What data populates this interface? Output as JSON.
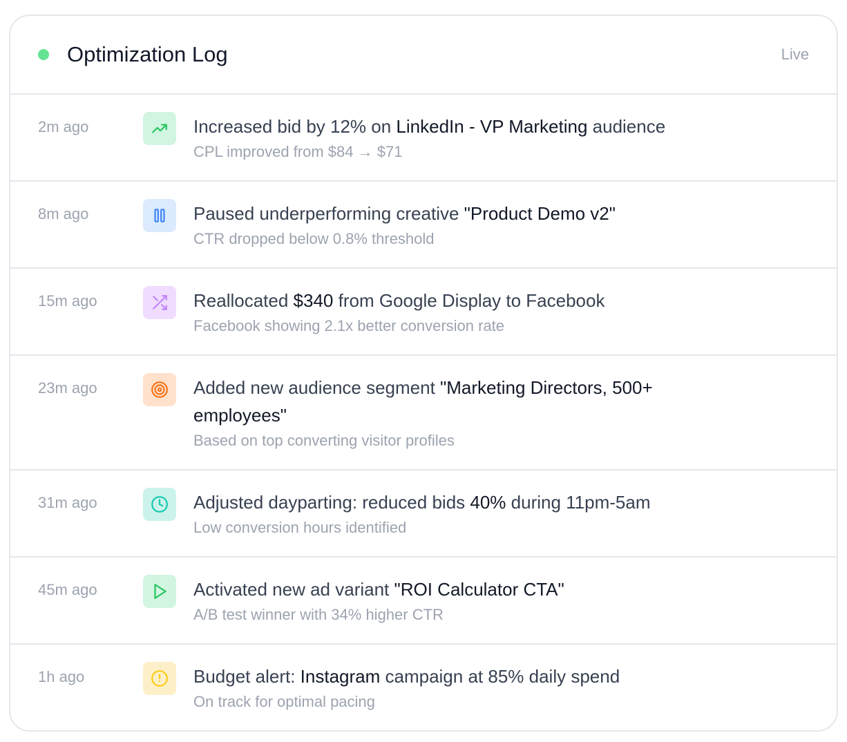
{
  "header": {
    "title": "Optimization Log",
    "status": "Live",
    "status_dot_color": "#4ade80"
  },
  "entries": [
    {
      "time": "2m ago",
      "icon": "trending-up-icon",
      "bg": "#d1f5e0",
      "fg": "#22c55e",
      "main_before": "Increased bid by 12% on ",
      "main_highlight": "LinkedIn - VP Marketing",
      "main_after": " audience",
      "detail": "CPL improved from $84 → $71"
    },
    {
      "time": "8m ago",
      "icon": "pause-icon",
      "bg": "#dbeafe",
      "fg": "#3b82f6",
      "main_before": "Paused underperforming creative ",
      "main_highlight": "\"Product Demo v2\"",
      "main_after": "",
      "detail": "CTR dropped below 0.8% threshold"
    },
    {
      "time": "15m ago",
      "icon": "shuffle-icon",
      "bg": "#f0dcfe",
      "fg": "#c084fc",
      "main_before": "Reallocated ",
      "main_highlight": "$340",
      "main_after": " from Google Display to Facebook",
      "detail": "Facebook showing 2.1x better conversion rate"
    },
    {
      "time": "23m ago",
      "icon": "target-icon",
      "bg": "#ffe1cc",
      "fg": "#f97316",
      "main_before": "Added new audience segment ",
      "main_highlight": "\"Marketing Directors, 500+ employees\"",
      "main_after": "",
      "detail": "Based on top converting visitor profiles"
    },
    {
      "time": "31m ago",
      "icon": "clock-icon",
      "bg": "#ccf2ec",
      "fg": "#14c8b0",
      "main_before": "Adjusted dayparting: reduced bids ",
      "main_highlight": "40%",
      "main_after": " during 11pm-5am",
      "detail": "Low conversion hours identified"
    },
    {
      "time": "45m ago",
      "icon": "play-icon",
      "bg": "#d1f5e0",
      "fg": "#22c55e",
      "main_before": "Activated new ad variant ",
      "main_highlight": "\"ROI Calculator CTA\"",
      "main_after": "",
      "detail": "A/B test winner with 34% higher CTR"
    },
    {
      "time": "1h ago",
      "icon": "alert-circle-icon",
      "bg": "#fdf0c8",
      "fg": "#facc15",
      "main_before": "Budget alert: ",
      "main_highlight": "Instagram",
      "main_after": " campaign at 85% daily spend",
      "detail": "On track for optimal pacing"
    }
  ]
}
